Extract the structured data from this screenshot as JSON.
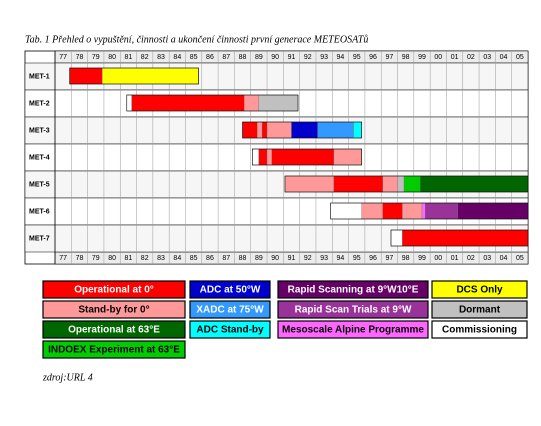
{
  "chart_data": {
    "type": "gantt",
    "title": "Tab. 1 Přehled o vypuštění, činnosti a ukončení činnosti první generace METEOSATů",
    "xlim": [
      77,
      106
    ],
    "xticks": [
      77,
      78,
      79,
      80,
      81,
      82,
      83,
      84,
      85,
      86,
      87,
      88,
      89,
      90,
      91,
      92,
      93,
      94,
      95,
      96,
      97,
      98,
      99,
      {
        "value": 100,
        "label": "00"
      },
      {
        "value": 101,
        "label": "01"
      },
      {
        "value": 102,
        "label": "02"
      },
      {
        "value": 103,
        "label": "03"
      },
      {
        "value": 104,
        "label": "04"
      },
      {
        "value": 105,
        "label": "05"
      }
    ],
    "rows": [
      {
        "name": "MET-1",
        "segments": [
          {
            "start": 77.9,
            "end": 79.9,
            "color": "#ff0000"
          },
          {
            "start": 79.9,
            "end": 85.8,
            "color": "#ffff00"
          }
        ]
      },
      {
        "name": "MET-2",
        "segments": [
          {
            "start": 81.4,
            "end": 81.7,
            "color": "#ffffff"
          },
          {
            "start": 81.7,
            "end": 88.6,
            "color": "#ff0000"
          },
          {
            "start": 88.6,
            "end": 89.5,
            "color": "#ff9999"
          },
          {
            "start": 89.5,
            "end": 91.9,
            "color": "#c0c0c0"
          }
        ]
      },
      {
        "name": "MET-3",
        "segments": [
          {
            "start": 88.5,
            "end": 89.4,
            "color": "#ff0000"
          },
          {
            "start": 89.4,
            "end": 89.7,
            "color": "#ff9999"
          },
          {
            "start": 89.7,
            "end": 90.0,
            "color": "#ff0000"
          },
          {
            "start": 90.0,
            "end": 91.5,
            "color": "#ff9999"
          },
          {
            "start": 91.5,
            "end": 93.1,
            "color": "#0000cc"
          },
          {
            "start": 93.1,
            "end": 95.3,
            "color": "#3399ff"
          },
          {
            "start": 95.3,
            "end": 95.8,
            "color": "#00ffff"
          }
        ]
      },
      {
        "name": "MET-4",
        "segments": [
          {
            "start": 89.1,
            "end": 89.5,
            "color": "#ffffff"
          },
          {
            "start": 89.5,
            "end": 90.0,
            "color": "#ff0000"
          },
          {
            "start": 90.0,
            "end": 90.3,
            "color": "#ff9999"
          },
          {
            "start": 90.3,
            "end": 94.1,
            "color": "#ff0000"
          },
          {
            "start": 94.1,
            "end": 95.8,
            "color": "#ff9999"
          }
        ]
      },
      {
        "name": "MET-5",
        "segments": [
          {
            "start": 91.1,
            "end": 94.1,
            "color": "#ff9999"
          },
          {
            "start": 94.1,
            "end": 97.1,
            "color": "#ff0000"
          },
          {
            "start": 97.1,
            "end": 98.0,
            "color": "#ff9999"
          },
          {
            "start": 98.0,
            "end": 98.4,
            "color": "#c0c0c0"
          },
          {
            "start": 98.4,
            "end": 99.4,
            "color": "#00cc00"
          },
          {
            "start": 99.4,
            "end": 106,
            "color": "#006600"
          }
        ]
      },
      {
        "name": "MET-6",
        "segments": [
          {
            "start": 93.9,
            "end": 95.8,
            "color": "#ffffff"
          },
          {
            "start": 95.8,
            "end": 97.1,
            "color": "#ff9999"
          },
          {
            "start": 97.1,
            "end": 98.3,
            "color": "#ff0000"
          },
          {
            "start": 98.3,
            "end": 99.5,
            "color": "#ff9999"
          },
          {
            "start": 99.5,
            "end": 99.7,
            "color": "#ff66ff"
          },
          {
            "start": 99.7,
            "end": 101.7,
            "color": "#993399"
          },
          {
            "start": 101.7,
            "end": 106,
            "color": "#660066"
          }
        ]
      },
      {
        "name": "MET-7",
        "segments": [
          {
            "start": 97.6,
            "end": 98.3,
            "color": "#ffffff"
          },
          {
            "start": 98.3,
            "end": 106,
            "color": "#ff0000"
          }
        ]
      }
    ],
    "legend": [
      [
        {
          "name": "Operational at 0°",
          "color": "#ff0000",
          "text_color": "#ffffff"
        },
        {
          "name": "Stand-by for 0°",
          "color": "#ff9999",
          "text_color": "#000000"
        },
        {
          "name": "Operational at 63°E",
          "color": "#006600",
          "text_color": "#ffffff"
        },
        {
          "name": "INDOEX Experiment at 63°E",
          "color": "#00cc00",
          "text_color": "#000000"
        }
      ],
      [
        {
          "name": "ADC at 50°W",
          "color": "#0000cc",
          "text_color": "#ffffff"
        },
        {
          "name": "XADC at 75°W",
          "color": "#3399ff",
          "text_color": "#ffffff"
        },
        {
          "name": "ADC Stand-by",
          "color": "#00ffff",
          "text_color": "#000000"
        }
      ],
      [
        {
          "name": "Rapid Scanning at 9°W10°E",
          "color": "#660066",
          "text_color": "#ffffff"
        },
        {
          "name": "Rapid Scan Trials at 9°W",
          "color": "#993399",
          "text_color": "#ffffff"
        },
        {
          "name": "Mesoscale Alpine Programme",
          "color": "#ff66ff",
          "text_color": "#000000"
        }
      ],
      [
        {
          "name": "DCS Only",
          "color": "#ffff00",
          "text_color": "#000000"
        },
        {
          "name": "Dormant",
          "color": "#c0c0c0",
          "text_color": "#000000"
        },
        {
          "name": "Commissioning",
          "color": "#ffffff",
          "text_color": "#000000"
        }
      ]
    ],
    "source": "zdroj:URL 4"
  }
}
